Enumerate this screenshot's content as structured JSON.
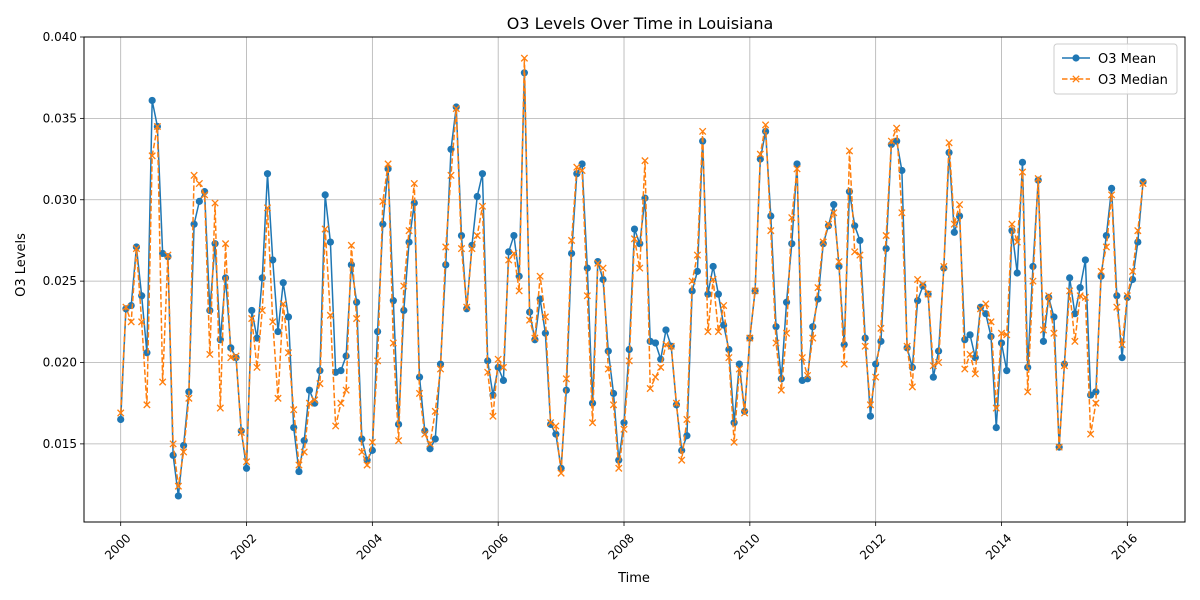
{
  "chart_data": {
    "type": "line",
    "title": "O3 Levels Over Time in Louisiana",
    "xlabel": "Time",
    "ylabel": "O3 Levels",
    "x_start": "2000-01",
    "x_step": "1 month",
    "xlim": [
      "1999-06",
      "2016-12"
    ],
    "ylim": [
      0.0102,
      0.04
    ],
    "xticks": [
      "2000",
      "2002",
      "2004",
      "2006",
      "2008",
      "2010",
      "2012",
      "2014",
      "2016"
    ],
    "yticks": [
      "0.015",
      "0.020",
      "0.025",
      "0.030",
      "0.035",
      "0.040"
    ],
    "grid": true,
    "legend_position": "upper right",
    "series": [
      {
        "name": "O3 Mean",
        "color": "#1f77b4",
        "linestyle": "solid",
        "marker": "circle",
        "values": [
          0.0165,
          0.0233,
          0.0235,
          0.0271,
          0.0241,
          0.0206,
          0.0361,
          0.0345,
          0.0267,
          0.0265,
          0.0143,
          0.0118,
          0.0149,
          0.0182,
          0.0285,
          0.0299,
          0.0305,
          0.0232,
          0.0273,
          0.0214,
          0.0252,
          0.0209,
          0.0203,
          0.0158,
          0.0135,
          0.0232,
          0.0215,
          0.0252,
          0.0316,
          0.0263,
          0.0219,
          0.0249,
          0.0228,
          0.016,
          0.0133,
          0.0152,
          0.0183,
          0.0175,
          0.0195,
          0.0303,
          0.0274,
          0.0194,
          0.0195,
          0.0204,
          0.026,
          0.0237,
          0.0153,
          0.014,
          0.0146,
          0.0219,
          0.0285,
          0.0319,
          0.0238,
          0.0162,
          0.0232,
          0.0274,
          0.0298,
          0.0191,
          0.0158,
          0.0147,
          0.0153,
          0.0199,
          0.026,
          0.0331,
          0.0357,
          0.0278,
          0.0233,
          0.0272,
          0.0302,
          0.0316,
          0.0201,
          0.018,
          0.0197,
          0.0189,
          0.0268,
          0.0278,
          0.0253,
          0.0378,
          0.0231,
          0.0214,
          0.0239,
          0.0218,
          0.0162,
          0.0156,
          0.0135,
          0.0183,
          0.0267,
          0.0316,
          0.0322,
          0.0258,
          0.0175,
          0.0262,
          0.0251,
          0.0207,
          0.0181,
          0.014,
          0.0163,
          0.0208,
          0.0282,
          0.0273,
          0.0301,
          0.0213,
          0.0212,
          0.0202,
          0.022,
          0.021,
          0.0174,
          0.0146,
          0.0155,
          0.0244,
          0.0256,
          0.0336,
          0.0242,
          0.0259,
          0.0242,
          0.0223,
          0.0208,
          0.0163,
          0.0199,
          0.017,
          0.0215,
          0.0244,
          0.0325,
          0.0342,
          0.029,
          0.0222,
          0.019,
          0.0237,
          0.0273,
          0.0322,
          0.0189,
          0.019,
          0.0222,
          0.0239,
          0.0273,
          0.0284,
          0.0297,
          0.0259,
          0.0211,
          0.0305,
          0.0284,
          0.0275,
          0.0215,
          0.0167,
          0.0199,
          0.0213,
          0.027,
          0.0334,
          0.0336,
          0.0318,
          0.0209,
          0.0197,
          0.0238,
          0.0247,
          0.0242,
          0.0191,
          0.0207,
          0.0258,
          0.0329,
          0.028,
          0.029,
          0.0214,
          0.0217,
          0.0203,
          0.0234,
          0.023,
          0.0216,
          0.016,
          0.0212,
          0.0195,
          0.0281,
          0.0255,
          0.0323,
          0.0197,
          0.0259,
          0.0312,
          0.0213,
          0.024,
          0.0228,
          0.0148,
          0.0199,
          0.0252,
          0.023,
          0.0246,
          0.0263,
          0.018,
          0.0182,
          0.0253,
          0.0278,
          0.0307,
          0.0241,
          0.0203,
          0.024,
          0.0251,
          0.0274,
          0.0311
        ]
      },
      {
        "name": "O3 Median",
        "color": "#ff7f0e",
        "linestyle": "dashed",
        "marker": "x",
        "values": [
          0.0169,
          0.0234,
          0.0225,
          0.027,
          0.0225,
          0.0174,
          0.0327,
          0.0345,
          0.0188,
          0.0266,
          0.015,
          0.0124,
          0.0145,
          0.0178,
          0.0315,
          0.031,
          0.0303,
          0.0205,
          0.0298,
          0.0172,
          0.0273,
          0.0203,
          0.0204,
          0.0157,
          0.0139,
          0.0227,
          0.0197,
          0.0232,
          0.0295,
          0.0225,
          0.0178,
          0.0236,
          0.0206,
          0.0171,
          0.0137,
          0.0145,
          0.0175,
          0.0177,
          0.0187,
          0.0282,
          0.0229,
          0.0161,
          0.0175,
          0.0183,
          0.0272,
          0.0227,
          0.0145,
          0.0137,
          0.0151,
          0.0201,
          0.0299,
          0.0322,
          0.0212,
          0.0152,
          0.0247,
          0.0281,
          0.031,
          0.0181,
          0.0156,
          0.015,
          0.017,
          0.0196,
          0.0271,
          0.0315,
          0.0356,
          0.027,
          0.0234,
          0.027,
          0.0278,
          0.0296,
          0.0194,
          0.0167,
          0.0202,
          0.0197,
          0.0263,
          0.0267,
          0.0244,
          0.0387,
          0.0226,
          0.0215,
          0.0253,
          0.0228,
          0.0163,
          0.0161,
          0.0132,
          0.019,
          0.0275,
          0.032,
          0.0318,
          0.0241,
          0.0163,
          0.0261,
          0.0258,
          0.0196,
          0.0174,
          0.0135,
          0.0159,
          0.0201,
          0.0276,
          0.0258,
          0.0324,
          0.0184,
          0.0191,
          0.0197,
          0.0211,
          0.021,
          0.0175,
          0.014,
          0.0165,
          0.025,
          0.0266,
          0.0342,
          0.0219,
          0.0251,
          0.0219,
          0.0235,
          0.0203,
          0.0151,
          0.0196,
          0.0169,
          0.0215,
          0.0244,
          0.0328,
          0.0346,
          0.0281,
          0.0212,
          0.0183,
          0.0218,
          0.0289,
          0.0319,
          0.0203,
          0.0192,
          0.0215,
          0.0246,
          0.0274,
          0.0285,
          0.0292,
          0.0262,
          0.0199,
          0.033,
          0.0268,
          0.0266,
          0.021,
          0.0174,
          0.0191,
          0.0221,
          0.0278,
          0.0336,
          0.0344,
          0.0292,
          0.021,
          0.0185,
          0.0251,
          0.0248,
          0.0242,
          0.0198,
          0.02,
          0.0259,
          0.0335,
          0.0285,
          0.0297,
          0.0196,
          0.0205,
          0.0193,
          0.0233,
          0.0236,
          0.0225,
          0.0172,
          0.0218,
          0.0217,
          0.0285,
          0.0274,
          0.0317,
          0.0182,
          0.025,
          0.0313,
          0.022,
          0.0241,
          0.0218,
          0.0148,
          0.0198,
          0.0244,
          0.0213,
          0.0241,
          0.024,
          0.0156,
          0.0175,
          0.0256,
          0.0271,
          0.0303,
          0.0234,
          0.0211,
          0.0241,
          0.0256,
          0.0281,
          0.031
        ]
      }
    ]
  }
}
